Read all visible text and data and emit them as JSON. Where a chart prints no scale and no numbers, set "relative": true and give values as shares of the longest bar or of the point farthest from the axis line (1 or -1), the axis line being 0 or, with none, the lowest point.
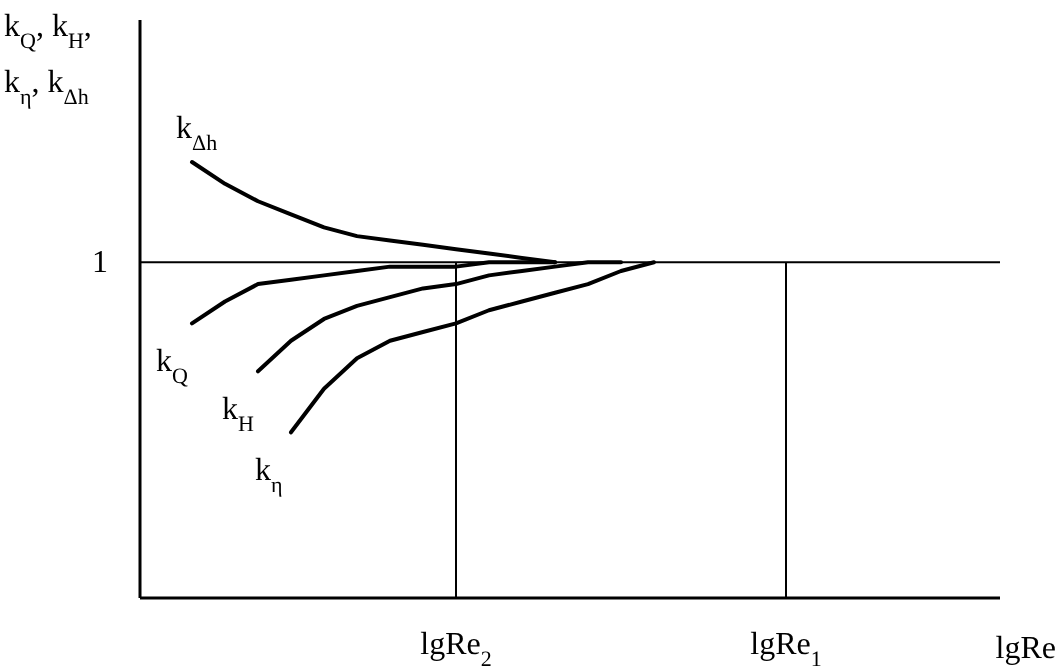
{
  "chart_data": {
    "type": "line",
    "relative": true,
    "xlabel": "lgRe",
    "ylabel": "k$_{Q}$, k$_{H}$, k$_{η}$, k$_{Δh}$",
    "categories": [
      null,
      null,
      null,
      null,
      null,
      null,
      null,
      null,
      null,
      "lgRe$_{2}$",
      null,
      null,
      null,
      null,
      null,
      null,
      null,
      null,
      null,
      "lgRe$_{1}$",
      null,
      null,
      null,
      null,
      null,
      null
    ],
    "series": [
      {
        "name": "k$_{Δh}$",
        "color": "#000000",
        "values": [
          null,
          1.0,
          0.95,
          0.91,
          0.88,
          0.85,
          0.83,
          0.82,
          0.81,
          0.8,
          0.79,
          0.78,
          0.77,
          null,
          null,
          null,
          null,
          null,
          null,
          null,
          null,
          null,
          null,
          null,
          null,
          null
        ]
      },
      {
        "name": "k$_{Q}$",
        "color": "#000000",
        "values": [
          null,
          0.63,
          0.68,
          0.72,
          0.73,
          0.74,
          0.75,
          0.76,
          0.76,
          0.76,
          0.77,
          0.77,
          0.77,
          null,
          null,
          null,
          null,
          null,
          null,
          null,
          null,
          null,
          null,
          null,
          null,
          null
        ]
      },
      {
        "name": "k$_{H}$",
        "color": "#000000",
        "values": [
          null,
          null,
          null,
          0.52,
          0.59,
          0.64,
          0.67,
          0.69,
          0.71,
          0.72,
          0.74,
          0.75,
          0.76,
          0.77,
          0.77,
          null,
          null,
          null,
          null,
          null,
          null,
          null,
          null,
          null,
          null,
          null
        ]
      },
      {
        "name": "k$_{η}$",
        "color": "#000000",
        "values": [
          null,
          null,
          null,
          null,
          0.38,
          0.48,
          0.55,
          0.59,
          0.61,
          0.63,
          0.66,
          0.68,
          0.7,
          0.72,
          0.75,
          0.77,
          null,
          null,
          null,
          null,
          null,
          null,
          null,
          null,
          null,
          null
        ]
      }
    ],
    "ref_lines": [
      {
        "axis": "y",
        "value": 0.77,
        "label": "1",
        "color": "#000000"
      },
      {
        "axis": "x",
        "value": "lgRe$_{2}$",
        "color": "#000000"
      },
      {
        "axis": "x",
        "value": "lgRe$_{1}$",
        "color": "#000000"
      }
    ],
    "grid": false,
    "marker": "none",
    "line_style": "solid"
  }
}
